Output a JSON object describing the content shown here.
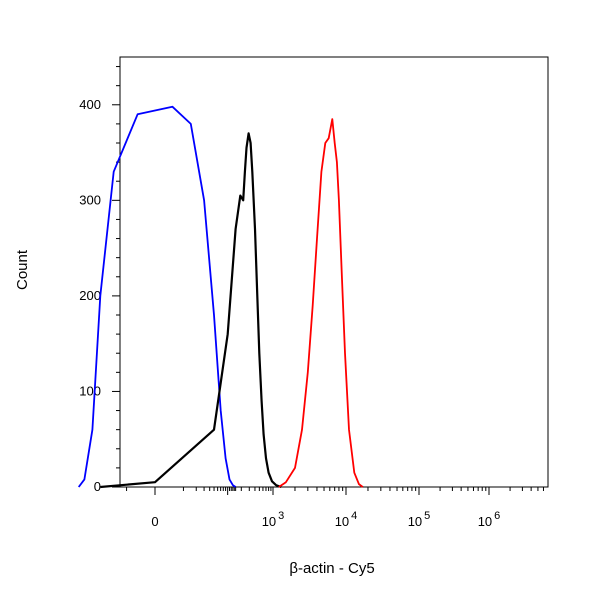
{
  "chart_data": {
    "type": "line",
    "xlabel": "β-actin - Cy5",
    "ylabel": "Count",
    "x_scale": "biexponential",
    "xlim": [
      -150,
      2000000
    ],
    "ylim": [
      0,
      450
    ],
    "y_ticks": [
      0,
      100,
      200,
      300,
      400
    ],
    "x_ticks": [
      {
        "base": "0",
        "exp": ""
      },
      {
        "base": "10",
        "exp": "3"
      },
      {
        "base": "10",
        "exp": "4"
      },
      {
        "base": "10",
        "exp": "5"
      },
      {
        "base": "10",
        "exp": "6"
      }
    ],
    "grid": false,
    "legend": "none",
    "series": [
      {
        "color": "#0000ff",
        "x": [
          -120,
          -90,
          -60,
          -40,
          -20,
          -5,
          5,
          15,
          30,
          50,
          70,
          90,
          110,
          130,
          150
        ],
        "y": [
          0,
          8,
          60,
          200,
          330,
          390,
          398,
          380,
          300,
          180,
          80,
          30,
          8,
          2,
          0
        ]
      },
      {
        "color": "#000000",
        "x": [
          -40,
          0,
          50,
          100,
          150,
          190,
          220,
          240,
          260,
          290,
          320,
          350,
          400,
          450,
          500,
          560,
          620,
          700,
          800,
          950,
          1100,
          1300
        ],
        "y": [
          0,
          5,
          60,
          160,
          270,
          305,
          300,
          330,
          355,
          370,
          360,
          330,
          270,
          200,
          140,
          90,
          55,
          30,
          15,
          6,
          2,
          0
        ]
      },
      {
        "color": "#ff0000",
        "x": [
          1200,
          1500,
          2000,
          2500,
          3000,
          3500,
          4000,
          4600,
          5200,
          5800,
          6500,
          7000,
          7500,
          8000,
          8800,
          9700,
          11000,
          13000,
          15000,
          17000
        ],
        "y": [
          0,
          5,
          20,
          60,
          120,
          190,
          260,
          330,
          360,
          365,
          385,
          360,
          340,
          300,
          220,
          140,
          60,
          15,
          3,
          0
        ]
      }
    ]
  }
}
